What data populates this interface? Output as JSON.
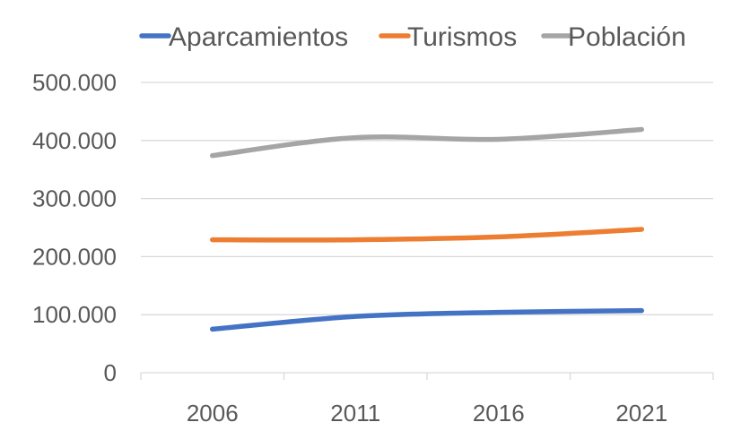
{
  "chart_data": {
    "type": "line",
    "title": "",
    "xlabel": "",
    "ylabel": "",
    "categories": [
      "2006",
      "2011",
      "2016",
      "2021"
    ],
    "ylim": [
      0,
      500000
    ],
    "yticks": [
      {
        "value": 0,
        "label": "0"
      },
      {
        "value": 100000,
        "label": "100.000"
      },
      {
        "value": 200000,
        "label": "200.000"
      },
      {
        "value": 300000,
        "label": "300.000"
      },
      {
        "value": 400000,
        "label": "400.000"
      },
      {
        "value": 500000,
        "label": "500.000"
      }
    ],
    "grid": true,
    "legend_position": "top",
    "series": [
      {
        "name": "Aparcamientos",
        "color": "#4472C4",
        "values": [
          75000,
          97000,
          104000,
          107000
        ]
      },
      {
        "name": "Turismos",
        "color": "#ED7D31",
        "values": [
          229000,
          229000,
          234000,
          247000
        ]
      },
      {
        "name": "Población",
        "color": "#A5A5A5",
        "values": [
          374000,
          405000,
          402000,
          419000
        ]
      }
    ]
  }
}
